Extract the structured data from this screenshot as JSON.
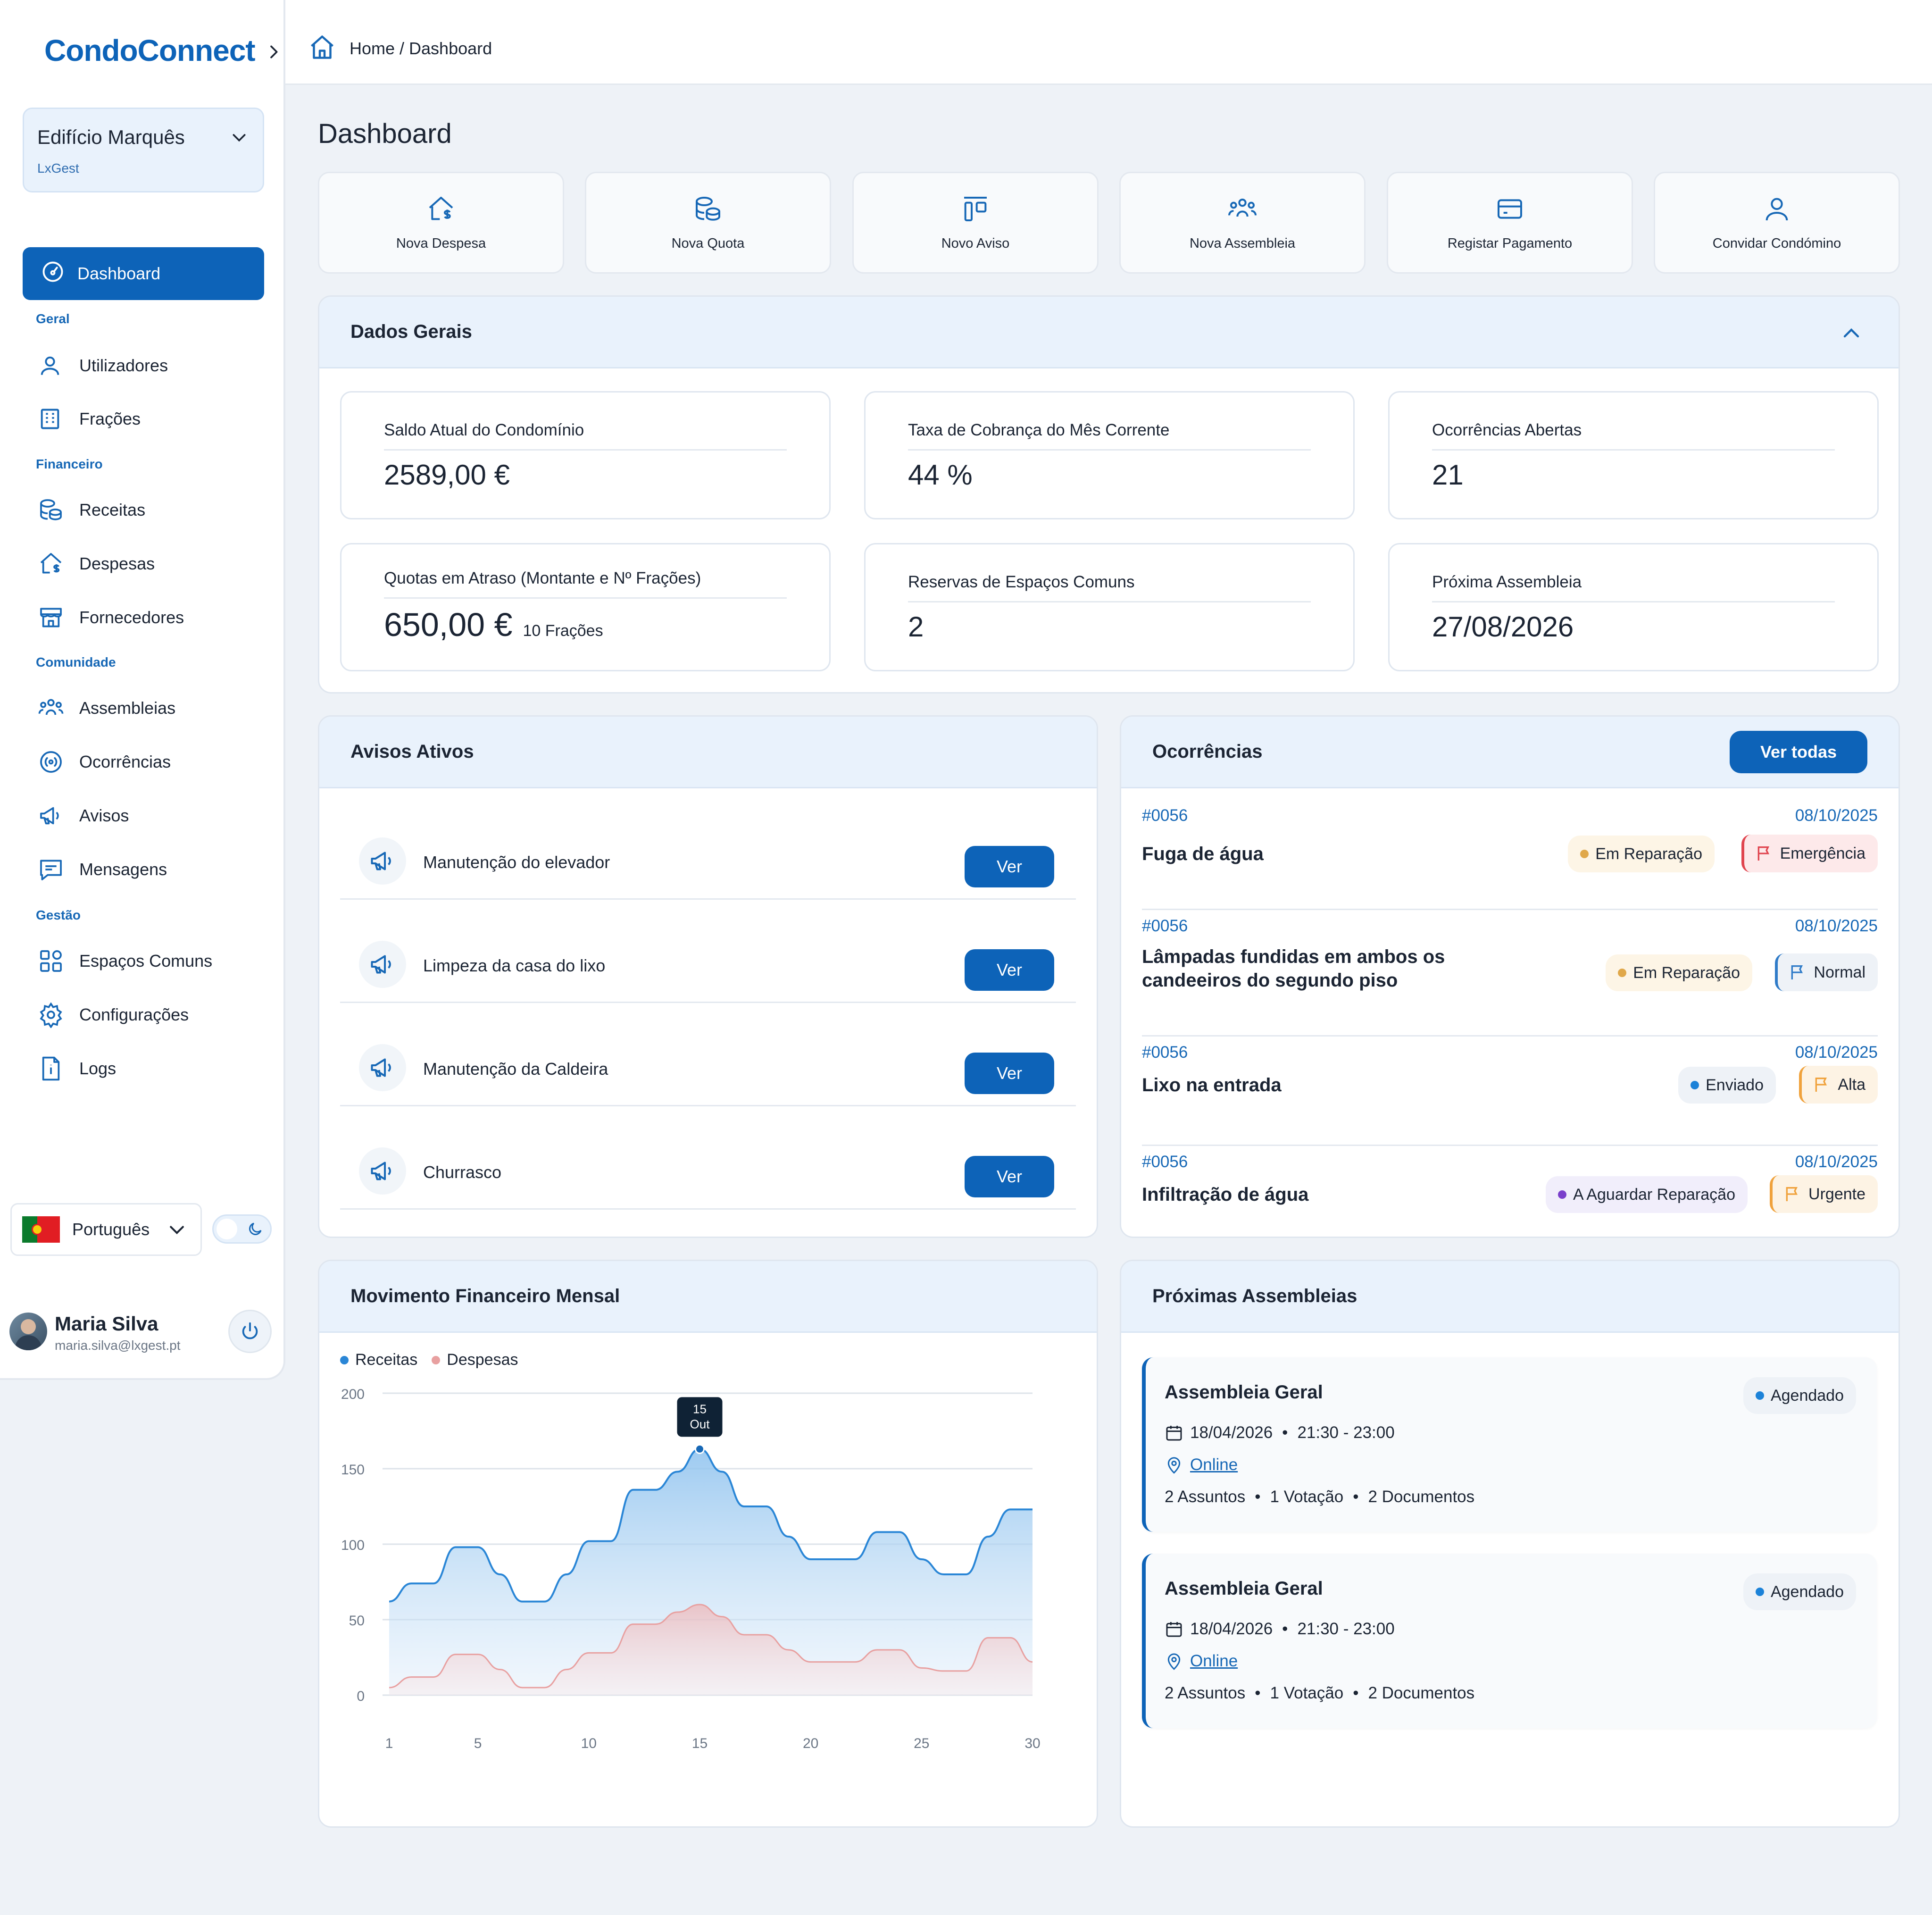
{
  "app": {
    "name": "CondoConnect"
  },
  "building": {
    "name": "Edifício Marquês",
    "org": "LxGest"
  },
  "nav": {
    "active": "Dashboard",
    "sections": {
      "geral": "Geral",
      "financeiro": "Financeiro",
      "comunidade": "Comunidade",
      "gestao": "Gestão"
    },
    "items": [
      "Utilizadores",
      "Frações",
      "Receitas",
      "Despesas",
      "Fornecedores",
      "Assembleias",
      "Ocorrências",
      "Avisos",
      "Mensagens",
      "Espaços Comuns",
      "Configurações",
      "Logs"
    ]
  },
  "language": {
    "selected": "Português"
  },
  "user": {
    "name": "Maria Silva",
    "email": "maria.silva@lxgest.pt"
  },
  "breadcrumb": "Home / Dashboard",
  "page": {
    "title": "Dashboard"
  },
  "quick_actions": [
    "Nova Despesa",
    "Nova Quota",
    "Novo Aviso",
    "Nova Assembleia",
    "Registar Pagamento",
    "Convidar Condómino"
  ],
  "dados_gerais": {
    "title": "Dados Gerais",
    "stats": [
      {
        "label": "Saldo Atual do Condomínio",
        "value": "2589,00 €",
        "sub": ""
      },
      {
        "label": "Taxa de Cobrança do Mês Corrente",
        "value": "44 %",
        "sub": ""
      },
      {
        "label": "Ocorrências Abertas",
        "value": "21",
        "sub": ""
      },
      {
        "label": "Quotas em Atraso (Montante e Nº Frações)",
        "value": "650,00 €",
        "sub": "10 Frações"
      },
      {
        "label": "Reservas de Espaços Comuns",
        "value": "2",
        "sub": ""
      },
      {
        "label": "Próxima Assembleia",
        "value": "27/08/2026",
        "sub": ""
      }
    ]
  },
  "avisos": {
    "title": "Avisos Ativos",
    "button": "Ver",
    "items": [
      "Manutenção do elevador",
      "Limpeza da casa do lixo",
      "Manutenção da Caldeira",
      "Churrasco"
    ]
  },
  "ocorrencias": {
    "title": "Ocorrências",
    "button": "Ver todas",
    "items": [
      {
        "id": "#0056",
        "date": "08/10/2025",
        "title": "Fuga de água",
        "status": "Em Reparação",
        "priority": "Emergência"
      },
      {
        "id": "#0056",
        "date": "08/10/2025",
        "title": "Lâmpadas fundidas em ambos os candeeiros do segundo piso",
        "status": "Em Reparação",
        "priority": "Normal"
      },
      {
        "id": "#0056",
        "date": "08/10/2025",
        "title": "Lixo na entrada",
        "status": "Enviado",
        "priority": "Alta"
      },
      {
        "id": "#0056",
        "date": "08/10/2025",
        "title": "Infiltração de água",
        "status": "A Aguardar Reparação",
        "priority": "Urgente"
      }
    ]
  },
  "financeiro": {
    "title": "Movimento Financeiro Mensal",
    "tooltip_day": "15",
    "tooltip_month": "Out"
  },
  "chart_data": {
    "type": "area",
    "x": [
      1,
      2,
      3,
      4,
      5,
      6,
      7,
      8,
      9,
      10,
      11,
      12,
      13,
      14,
      15,
      16,
      17,
      18,
      19,
      20,
      21,
      22,
      23,
      24,
      25,
      26,
      27,
      28,
      29,
      30
    ],
    "series": [
      {
        "name": "Receitas",
        "color": "#2a86d6",
        "values": [
          62,
          74,
          74,
          98,
          98,
          80,
          62,
          62,
          80,
          102,
          102,
          136,
          136,
          148,
          163,
          148,
          125,
          125,
          105,
          90,
          90,
          90,
          108,
          108,
          90,
          80,
          80,
          105,
          123,
          123
        ]
      },
      {
        "name": "Despesas",
        "color": "#e8a0a0",
        "values": [
          5,
          12,
          12,
          27,
          27,
          17,
          5,
          5,
          17,
          28,
          28,
          47,
          47,
          55,
          60,
          52,
          40,
          40,
          30,
          22,
          22,
          22,
          30,
          30,
          18,
          16,
          16,
          38,
          38,
          22
        ]
      }
    ],
    "ylim": [
      0,
      200
    ],
    "yticks": [
      0,
      50,
      100,
      150,
      200
    ],
    "xticks": [
      1,
      5,
      10,
      15,
      20,
      25,
      30
    ],
    "legend": "top-left",
    "grid": true
  },
  "assembleias": {
    "title": "Próximas Assembleias",
    "items": [
      {
        "title": "Assembleia Geral",
        "status": "Agendado",
        "date": "18/04/2026",
        "time": "21:30 - 23:00",
        "location": "Online",
        "assuntos": "2 Assuntos",
        "votacao": "1 Votação",
        "documentos": "2 Documentos"
      },
      {
        "title": "Assembleia Geral",
        "status": "Agendado",
        "date": "18/04/2026",
        "time": "21:30 - 23:00",
        "location": "Online",
        "assuntos": "2 Assuntos",
        "votacao": "1 Votação",
        "documentos": "2 Documentos"
      }
    ]
  }
}
